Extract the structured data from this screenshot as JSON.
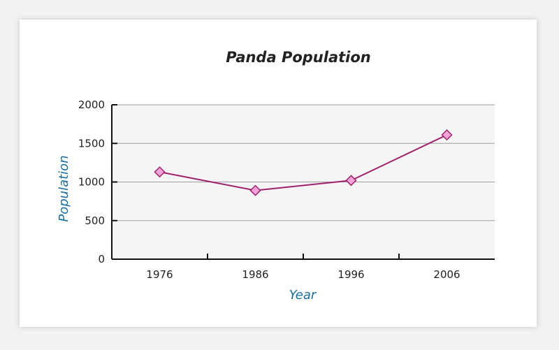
{
  "colors": {
    "page_background": "#f2f2f2",
    "card_background": "#ffffff",
    "plot_background": "#f5f5f5",
    "gridline": "#9e9e9e",
    "axis": "#111111",
    "line": "#a0226e",
    "marker_fill": "#f2a3d8",
    "marker_stroke": "#a0226e",
    "axis_label": "#1a6fa0",
    "title": "#222222"
  },
  "chart_data": {
    "type": "line",
    "title": "Panda Population",
    "xlabel": "Year",
    "ylabel": "Population",
    "categories": [
      "1976",
      "1986",
      "1996",
      "2006"
    ],
    "series": [
      {
        "values": [
          1130,
          890,
          1020,
          1610
        ]
      }
    ],
    "ylim": [
      0,
      2000
    ],
    "yticks": [
      "0",
      "500",
      "1000",
      "1500",
      "2000"
    ],
    "grid": true,
    "legend": "none",
    "marker": "diamond-icon"
  }
}
